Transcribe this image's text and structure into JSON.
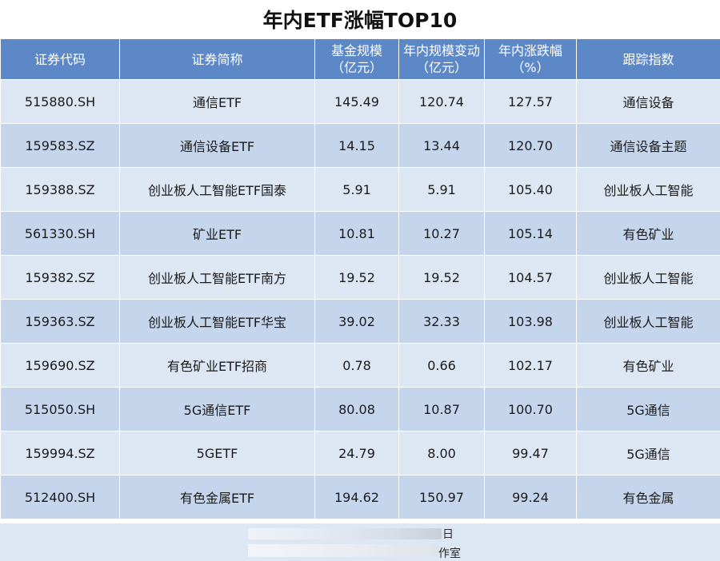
{
  "title": "年内ETF涨幅TOP10",
  "headers": {
    "code": "证券代码",
    "name": "证券简称",
    "size_line1": "基金规模",
    "size_line2": "（亿元）",
    "change_line1": "年内规模变动",
    "change_line2": "（亿元）",
    "gain_line1": "年内涨跌幅",
    "gain_line2": "（%）",
    "index": "跟踪指数"
  },
  "rows": [
    {
      "code": "515880.SH",
      "name": "通信ETF",
      "size": "145.49",
      "change": "120.74",
      "gain": "127.57",
      "index": "通信设备"
    },
    {
      "code": "159583.SZ",
      "name": "通信设备ETF",
      "size": "14.15",
      "change": "13.44",
      "gain": "120.70",
      "index": "通信设备主题"
    },
    {
      "code": "159388.SZ",
      "name": "创业板人工智能ETF国泰",
      "size": "5.91",
      "change": "5.91",
      "gain": "105.40",
      "index": "创业板人工智能"
    },
    {
      "code": "561330.SH",
      "name": "矿业ETF",
      "size": "10.81",
      "change": "10.27",
      "gain": "105.14",
      "index": "有色矿业"
    },
    {
      "code": "159382.SZ",
      "name": "创业板人工智能ETF南方",
      "size": "19.52",
      "change": "19.52",
      "gain": "104.57",
      "index": "创业板人工智能"
    },
    {
      "code": "159363.SZ",
      "name": "创业板人工智能ETF华宝",
      "size": "39.02",
      "change": "32.33",
      "gain": "103.98",
      "index": "创业板人工智能"
    },
    {
      "code": "159690.SZ",
      "name": "有色矿业ETF招商",
      "size": "0.78",
      "change": "0.66",
      "gain": "102.17",
      "index": "有色矿业"
    },
    {
      "code": "515050.SH",
      "name": "5G通信ETF",
      "size": "80.08",
      "change": "10.87",
      "gain": "100.70",
      "index": "5G通信"
    },
    {
      "code": "159994.SZ",
      "name": "5GETF",
      "size": "24.79",
      "change": "8.00",
      "gain": "99.47",
      "index": "5G通信"
    },
    {
      "code": "512400.SH",
      "name": "有色金属ETF",
      "size": "194.62",
      "change": "150.97",
      "gain": "99.24",
      "index": "有色金属"
    }
  ],
  "footer": {
    "line1_fragment": "日",
    "line2_fragment": "作室"
  },
  "colors": {
    "header_bg": "#5d88c8",
    "row_light": "#dde6f3",
    "row_dark": "#c5d5ec"
  }
}
